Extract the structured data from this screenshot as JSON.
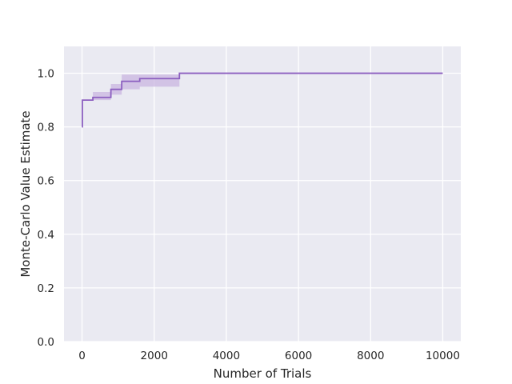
{
  "chart_data": {
    "type": "line",
    "title": "",
    "xlabel": "Number of Trials",
    "ylabel": "Monte-Carlo Value Estimate",
    "xlim": [
      -500,
      10500
    ],
    "ylim": [
      0,
      1.1
    ],
    "xticks": [
      0,
      2000,
      4000,
      6000,
      8000,
      10000
    ],
    "xtick_labels": [
      "0",
      "2000",
      "4000",
      "6000",
      "8000",
      "10000"
    ],
    "yticks": [
      0.0,
      0.2,
      0.4,
      0.6,
      0.8,
      1.0
    ],
    "ytick_labels": [
      "0.0",
      "0.2",
      "0.4",
      "0.6",
      "0.8",
      "1.0"
    ],
    "grid": true,
    "background": "#eaeaf2",
    "series": [
      {
        "color": "#8c5fc0",
        "band_color": "#c9b5e0",
        "points": [
          {
            "x": 0,
            "y": 0.8
          },
          {
            "x": 10,
            "y": 0.9
          },
          {
            "x": 300,
            "y": 0.91
          },
          {
            "x": 800,
            "y": 0.94
          },
          {
            "x": 1100,
            "y": 0.97
          },
          {
            "x": 1600,
            "y": 0.98
          },
          {
            "x": 2700,
            "y": 1.0
          },
          {
            "x": 10000,
            "y": 1.0
          }
        ],
        "band": [
          {
            "x": 300,
            "lower": 0.9,
            "upper": 0.93
          },
          {
            "x": 800,
            "lower": 0.92,
            "upper": 0.96
          },
          {
            "x": 1100,
            "lower": 0.94,
            "upper": 0.995
          },
          {
            "x": 1600,
            "lower": 0.95,
            "upper": 0.995
          },
          {
            "x": 2700,
            "lower": 1.0,
            "upper": 1.0
          }
        ]
      }
    ]
  }
}
